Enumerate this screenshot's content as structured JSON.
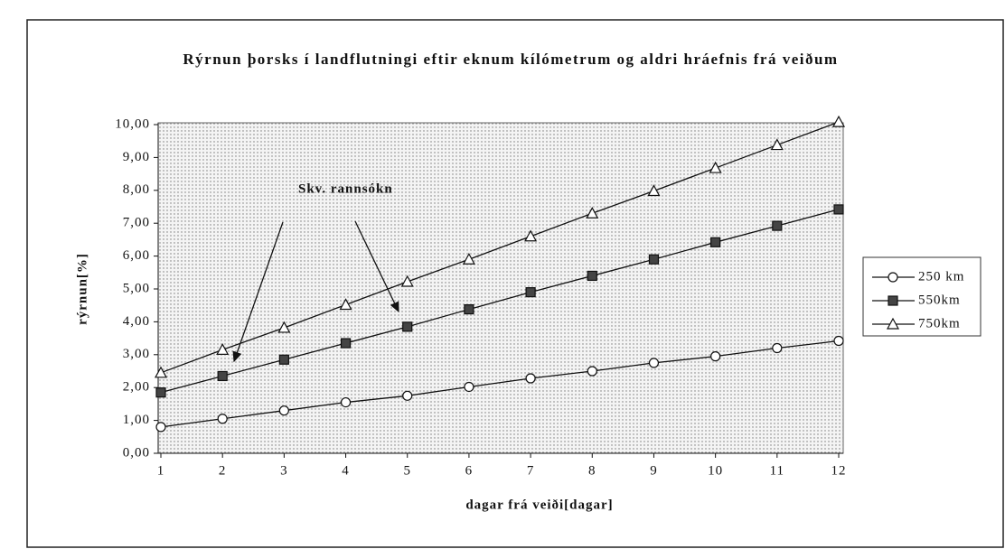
{
  "chart_data": {
    "type": "line",
    "title": "Rýrnun þorsks í landflutningi eftir eknum kílómetrum og aldri hráefnis frá veiðum",
    "x_label": "dagar frá veiði[dagar]",
    "y_label": "rýrnun[%]",
    "annotation": "Skv. rannsókn",
    "x": [
      1,
      2,
      3,
      4,
      5,
      6,
      7,
      8,
      9,
      10,
      11,
      12
    ],
    "xlim": [
      1,
      12
    ],
    "xticks": [
      1,
      2,
      3,
      4,
      5,
      6,
      7,
      8,
      9,
      10,
      11,
      12
    ],
    "ylim": [
      0,
      10
    ],
    "yticks": [
      {
        "value": 0,
        "label": "0,00"
      },
      {
        "value": 1,
        "label": "1,00"
      },
      {
        "value": 2,
        "label": "2,00"
      },
      {
        "value": 3,
        "label": "3,00"
      },
      {
        "value": 4,
        "label": "4,00"
      },
      {
        "value": 5,
        "label": "5,00"
      },
      {
        "value": 6,
        "label": "6,00"
      },
      {
        "value": 7,
        "label": "7,00"
      },
      {
        "value": 8,
        "label": "8,00"
      },
      {
        "value": 9,
        "label": "9,00"
      },
      {
        "value": 10,
        "label": "10,00"
      }
    ],
    "legend": "right",
    "series": [
      {
        "name": "250 km",
        "color": "#111111",
        "marker": "circle",
        "values": [
          0.8,
          1.05,
          1.3,
          1.55,
          1.75,
          2.02,
          2.28,
          2.5,
          2.75,
          2.95,
          3.2,
          3.42
        ]
      },
      {
        "name": "550km",
        "color": "#111111",
        "marker": "square",
        "values": [
          1.85,
          2.35,
          2.85,
          3.35,
          3.85,
          4.38,
          4.9,
          5.4,
          5.9,
          6.42,
          6.92,
          7.42
        ]
      },
      {
        "name": "750km",
        "color": "#111111",
        "marker": "triangle",
        "values": [
          2.45,
          3.15,
          3.82,
          4.52,
          5.22,
          5.9,
          6.6,
          7.3,
          7.98,
          8.68,
          9.38,
          10.08
        ]
      }
    ]
  }
}
